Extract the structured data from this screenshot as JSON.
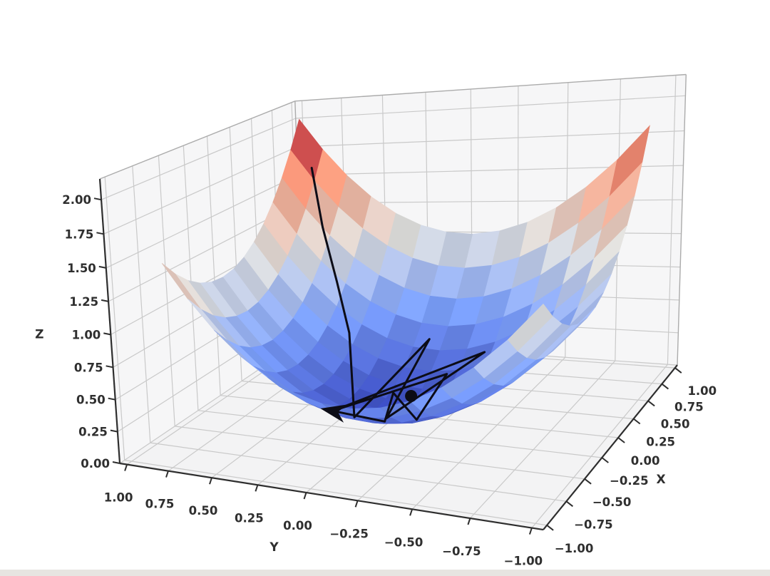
{
  "figure": {
    "background": "#ffffff",
    "bottom_strip_color": "#e7e5e1"
  },
  "chart_data": {
    "type": "surface3d",
    "title": "",
    "function": "z = x^2 + y^2",
    "colormap": "coolwarm",
    "view": {
      "elev_deg": 25,
      "azim_deg": 200,
      "perspective": true
    },
    "axes": {
      "x": {
        "label": "X",
        "range": [
          -1,
          1
        ],
        "tick_values": [
          -1,
          -0.75,
          -0.5,
          -0.25,
          0,
          0.25,
          0.5,
          0.75,
          1
        ],
        "tick_labels": [
          "−1.00",
          "−0.75",
          "−0.50",
          "−0.25",
          "0.00",
          "0.25",
          "0.50",
          "0.75",
          "1.00"
        ]
      },
      "y": {
        "label": "Y",
        "range": [
          -1,
          1
        ],
        "tick_values": [
          -1,
          -0.75,
          -0.5,
          -0.25,
          0,
          0.25,
          0.5,
          0.75,
          1
        ],
        "tick_labels": [
          "−1.00",
          "−0.75",
          "−0.50",
          "−0.25",
          "0.00",
          "0.25",
          "0.50",
          "0.75",
          "1.00"
        ]
      },
      "z": {
        "label": "Z",
        "range": [
          0,
          2
        ],
        "tick_values": [
          0,
          0.25,
          0.5,
          0.75,
          1,
          1.25,
          1.5,
          1.75,
          2
        ],
        "tick_labels": [
          "0.00",
          "0.25",
          "0.50",
          "0.75",
          "1.00",
          "1.25",
          "1.50",
          "1.75",
          "2.00"
        ]
      }
    },
    "surface": {
      "x_domain": [
        -0.6,
        1.0
      ],
      "y_domain": [
        -0.9,
        1.0
      ],
      "z_min": 0,
      "z_max": 2,
      "mesh": 13
    },
    "colormap_stops": [
      [
        0.0,
        "#3b4cc0"
      ],
      [
        0.25,
        "#7b9ff9"
      ],
      [
        0.5,
        "#dcdcda"
      ],
      [
        0.75,
        "#f49a7b"
      ],
      [
        1.0,
        "#b40426"
      ]
    ],
    "trajectory": {
      "description": "gradient descent path: descends bowl wall then oscillates around minimum",
      "color": "#0c0c16",
      "line_width": 3,
      "z_offset": 0.02,
      "points_xy": [
        [
          0.9,
          0.88
        ],
        [
          0.75,
          0.75
        ],
        [
          0.6,
          0.6
        ],
        [
          0.42,
          0.45
        ],
        [
          -0.3,
          0.1
        ],
        [
          0.55,
          0.05
        ],
        [
          -0.42,
          -0.12
        ],
        [
          0.45,
          -0.28
        ],
        [
          -0.38,
          0.18
        ],
        [
          0.35,
          -0.12
        ],
        [
          -0.25,
          -0.2
        ],
        [
          0.18,
          0.1
        ],
        [
          -0.28,
          -0.05
        ],
        [
          -0.45,
          0.12
        ]
      ],
      "arrow_at_end": true,
      "minimum_point_xy": [
        0.05,
        -0.05
      ]
    },
    "style": {
      "pane_color": "#f6f6f7",
      "floor_color": "#f3f3f4",
      "grid_color": "#c9c9c9",
      "box_edge_color": "#ababab",
      "spine_color": "#2e2e2e",
      "tick_color": "#2e2e2e",
      "tick_label_color": "#2f2f2f",
      "tick_fontsize": 16.5,
      "axis_letter_fontsize": 17
    }
  }
}
